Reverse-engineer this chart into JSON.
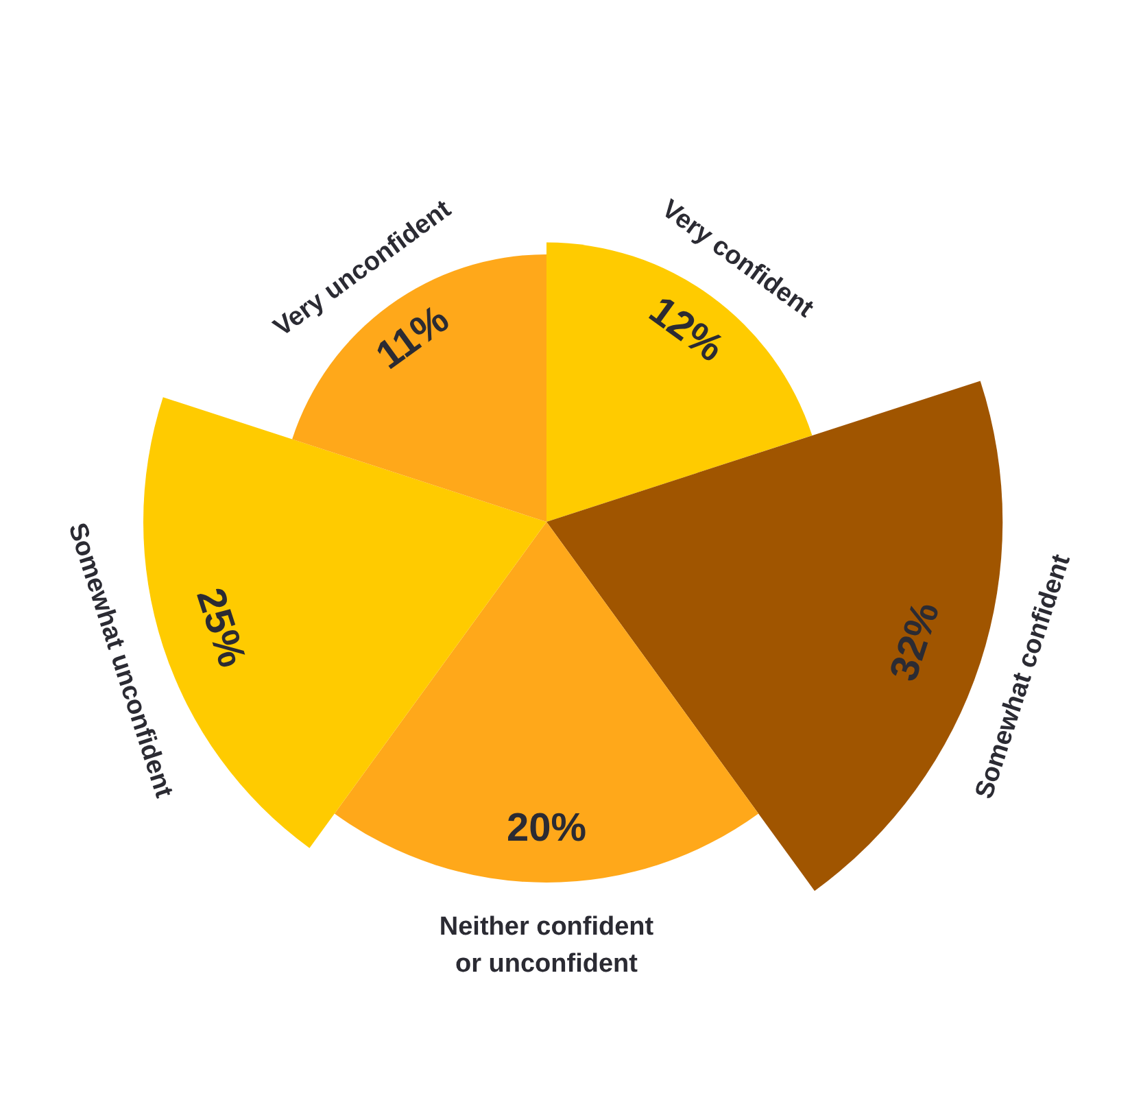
{
  "chart_data": {
    "type": "other",
    "categories": [
      "Very confident",
      "Somewhat confident",
      "Neither confident\nor unconfident",
      "Somewhat unconfident",
      "Very unconfident"
    ],
    "values": [
      12,
      32,
      20,
      25,
      11
    ],
    "value_labels": [
      "12%",
      "32%",
      "20%",
      "25%",
      "11%"
    ],
    "colors": [
      "#ffcb00",
      "#a05500",
      "#ffa81a",
      "#ffcb00",
      "#ffa81a"
    ]
  }
}
